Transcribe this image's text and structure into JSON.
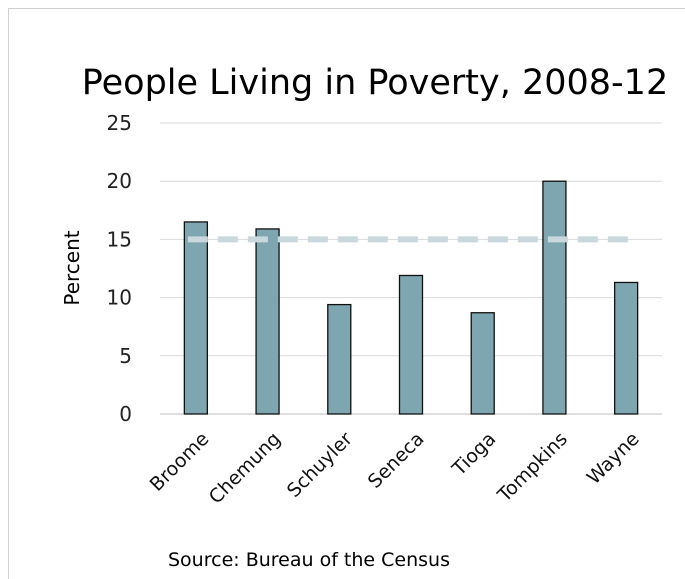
{
  "chart_data": {
    "type": "bar",
    "title": "People Living in Poverty, 2008-12",
    "xlabel": "",
    "ylabel": "Percent",
    "categories": [
      "Broome",
      "Chemung",
      "Schuyler",
      "Seneca",
      "Tioga",
      "Tompkins",
      "Wayne"
    ],
    "values": [
      16.5,
      15.9,
      9.4,
      11.9,
      8.7,
      20.0,
      11.3
    ],
    "reference_line": 15,
    "ylim": [
      0,
      25
    ],
    "yticks": [
      0,
      5,
      10,
      15,
      20,
      25
    ],
    "grid": true,
    "legend": "none",
    "note": "Source: Bureau of the Census",
    "colors": {
      "bar": "#7ea6b0",
      "bar_edge": "#111111",
      "reference_line": "#c8d8dc",
      "grid": "#d9d9d9"
    }
  }
}
